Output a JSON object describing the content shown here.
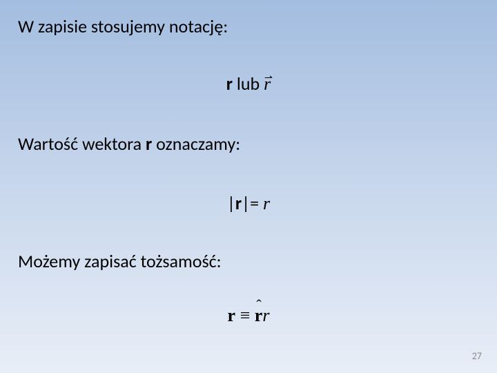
{
  "slide": {
    "background_gradient": {
      "top": "#a3bde0",
      "mid": "#c8d7ec",
      "bottom": "#e8eef7"
    },
    "text_color": "#000000",
    "font_family": "Calibri",
    "font_size_pt": 20,
    "line1": "W zapisie stosujemy notację:",
    "line2": {
      "bold_r": "r",
      "lub": "  lub  ",
      "vector_r": "r",
      "vector_r_arrow": "⇀"
    },
    "line3_prefix": "Wartość wektora ",
    "line3_bold": "r",
    "line3_suffix": " oznaczamy:",
    "line4": {
      "abs_open": "|",
      "bold_r": "r",
      "abs_close_eq": "|= ",
      "italic_r": "r"
    },
    "line5": "Możemy zapisać tożsamość:",
    "line6": {
      "bold_r": "r",
      "equiv": " ≡ ",
      "hat_r": "r",
      "hat_symbol": "ˆ",
      "italic_r": "r"
    },
    "page_number": "27",
    "page_number_color": "#8a8a8a"
  }
}
